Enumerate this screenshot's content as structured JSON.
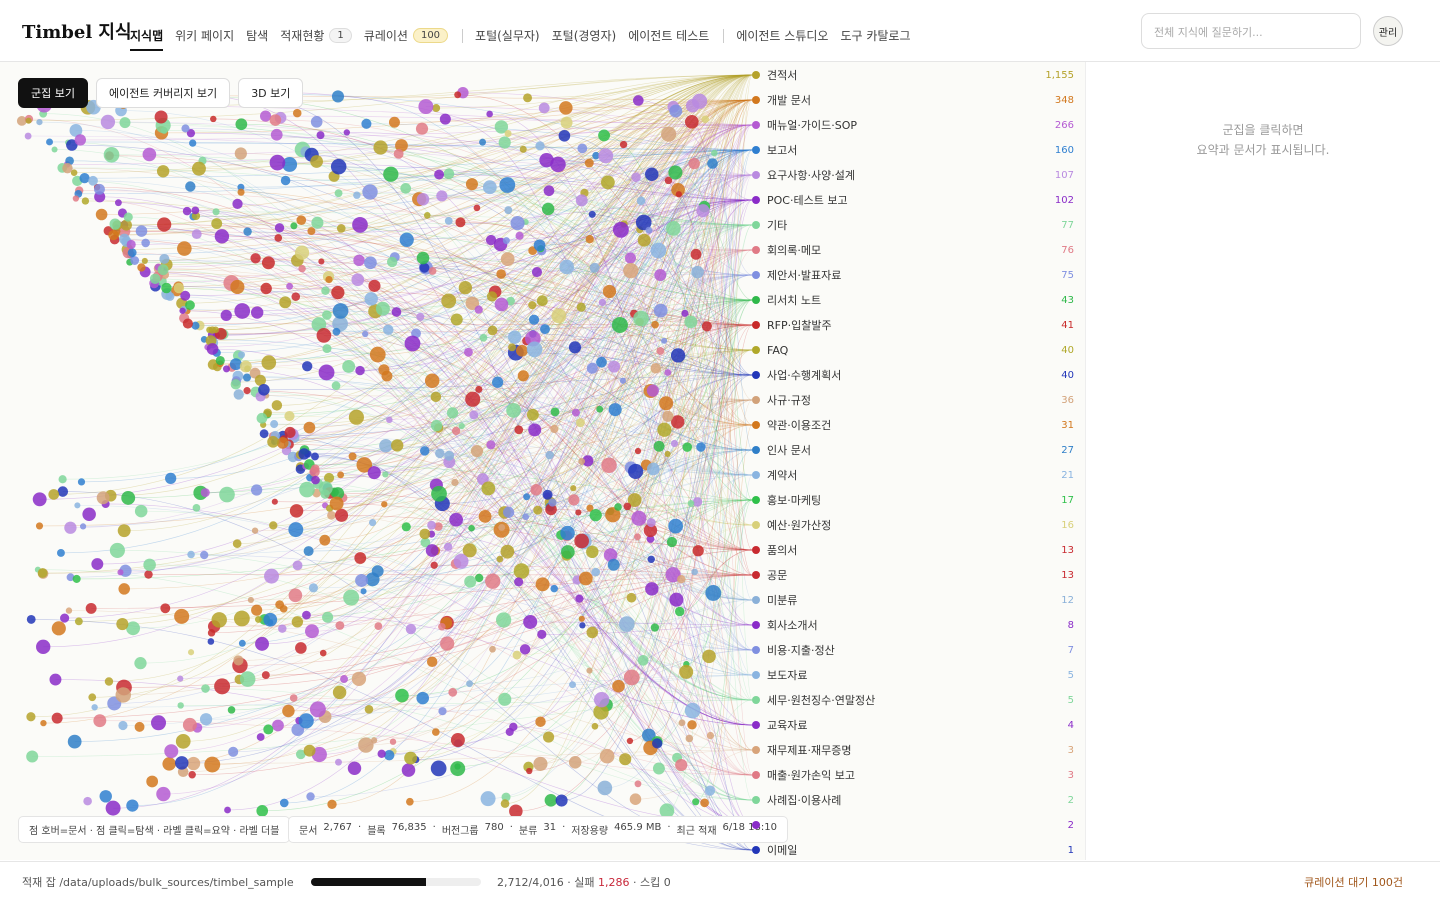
{
  "header": {
    "brand": "Timbel 지식",
    "tabs": [
      {
        "label": "지식맵",
        "active": true
      },
      {
        "label": "위키 페이지"
      },
      {
        "label": "탐색"
      },
      {
        "label": "적재현황",
        "badge": "1"
      },
      {
        "label": "큐레이션",
        "badge": "100"
      }
    ],
    "portal_tabs": [
      "포털(실무자)",
      "포털(경영자)",
      "에이전트 테스트"
    ],
    "agent_tabs": [
      "에이전트 스튜디오",
      "도구 카탈로그"
    ],
    "search_placeholder": "전체 지식에 질문하기...",
    "admin_button": "관리"
  },
  "view_buttons": [
    {
      "label": "군집 보기",
      "active": true
    },
    {
      "label": "에이전트 커버리지 보기"
    },
    {
      "label": "3D 보기"
    }
  ],
  "categories": [
    {
      "label": "견적서",
      "count": "1,155",
      "color": "#b5a22a"
    },
    {
      "label": "개발 문서",
      "count": "348",
      "color": "#d2781e"
    },
    {
      "label": "매뉴얼·가이드·SOP",
      "count": "266",
      "color": "#b45ad2"
    },
    {
      "label": "보고서",
      "count": "160",
      "color": "#2f7fd0"
    },
    {
      "label": "요구사항·사양·설계",
      "count": "107",
      "color": "#b98ae0"
    },
    {
      "label": "POC·테스트 보고",
      "count": "102",
      "color": "#8a2cc8"
    },
    {
      "label": "기타",
      "count": "77",
      "color": "#7fd69a"
    },
    {
      "label": "회의록·메모",
      "count": "76",
      "color": "#e07a86"
    },
    {
      "label": "제안서·발표자료",
      "count": "75",
      "color": "#7f8fe0"
    },
    {
      "label": "리서치 노트",
      "count": "43",
      "color": "#2fb84a"
    },
    {
      "label": "RFP·입찰발주",
      "count": "41",
      "color": "#c82a2a"
    },
    {
      "label": "FAQ",
      "count": "40",
      "color": "#b0a82a"
    },
    {
      "label": "사업·수행계획서",
      "count": "40",
      "color": "#2236b8"
    },
    {
      "label": "사규·규정",
      "count": "36",
      "color": "#d2a27a"
    },
    {
      "label": "약관·이용조건",
      "count": "31",
      "color": "#d2781e"
    },
    {
      "label": "인사 문서",
      "count": "27",
      "color": "#2f7fc8"
    },
    {
      "label": "계약서",
      "count": "21",
      "color": "#8ab4e0"
    },
    {
      "label": "홍보·마케팅",
      "count": "17",
      "color": "#2fc04a"
    },
    {
      "label": "예산·원가산정",
      "count": "16",
      "color": "#d8d07a"
    },
    {
      "label": "품의서",
      "count": "13",
      "color": "#c82a30"
    },
    {
      "label": "공문",
      "count": "13",
      "color": "#c82a30"
    },
    {
      "label": "미분류",
      "count": "12",
      "color": "#8ab0d8"
    },
    {
      "label": "회사소개서",
      "count": "8",
      "color": "#8a2cc8"
    },
    {
      "label": "비용·지출·정산",
      "count": "7",
      "color": "#7f8fe0"
    },
    {
      "label": "보도자료",
      "count": "5",
      "color": "#8ab4e0"
    },
    {
      "label": "세무·원천징수·연말정산",
      "count": "5",
      "color": "#7fd69a"
    },
    {
      "label": "교육자료",
      "count": "4",
      "color": "#8a2cc8"
    },
    {
      "label": "재무제표·재무증명",
      "count": "3",
      "color": "#d8a47a"
    },
    {
      "label": "매출·원가손익 보고",
      "count": "3",
      "color": "#e07a86"
    },
    {
      "label": "사례집·이용사례",
      "count": "2",
      "color": "#7fd69a"
    },
    {
      "label": null,
      "count": "2",
      "color": "#8a2cc8"
    },
    {
      "label": "이메일",
      "count": "1",
      "color": "#2236b8"
    }
  ],
  "hint": "점 호버=문서 · 점 클릭=탐색 · 라벨 클릭=요약 · 라벨 더블",
  "stats": [
    {
      "label": "문서",
      "value": "2,767"
    },
    {
      "label": "블록",
      "value": "76,835"
    },
    {
      "label": "버전그룹",
      "value": "780"
    },
    {
      "label": "분류",
      "value": "31"
    },
    {
      "label": "저장용량",
      "value": "465.9 MB"
    },
    {
      "label": "최근 적재",
      "value": "6/18 18:10"
    }
  ],
  "panel": {
    "line1": "군집을 클릭하면",
    "line2": "요약과 문서가 표시됩니다."
  },
  "footer": {
    "job_label": "적재 잡 /data/uploads/bulk_sources/timbel_sample",
    "progress": {
      "done": {
        "value": 2712,
        "label": "2,712"
      },
      "total": {
        "value": 4016,
        "label": "4,016"
      }
    },
    "failed_label": "실패",
    "failed": "1,286",
    "skipped_label": "스킵",
    "skipped": "0",
    "curation": "큐레이션 대기 100건"
  }
}
